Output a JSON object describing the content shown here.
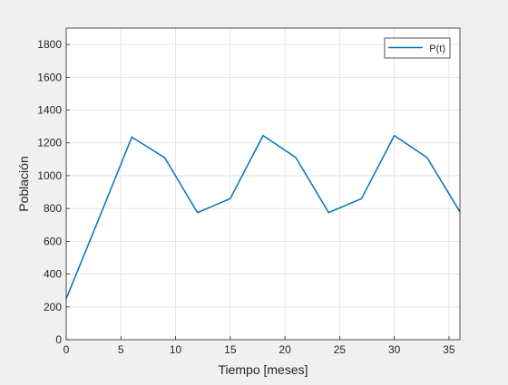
{
  "chart_data": {
    "type": "line",
    "xlabel": "Tiempo [meses]",
    "ylabel": "Población",
    "xlim": [
      0,
      36
    ],
    "ylim": [
      0,
      1900
    ],
    "x_ticks": [
      0,
      5,
      10,
      15,
      20,
      25,
      30,
      35
    ],
    "y_ticks": [
      0,
      200,
      400,
      600,
      800,
      1000,
      1200,
      1400,
      1600,
      1800
    ],
    "grid": true,
    "legend_position": "top-right",
    "series": [
      {
        "name": "P(t)",
        "color": "#0072bd",
        "x": [
          0,
          3,
          6,
          9,
          12,
          15,
          18,
          21,
          24,
          27,
          30,
          33,
          36
        ],
        "y": [
          250,
          740,
          1235,
          1110,
          775,
          860,
          1245,
          1110,
          775,
          860,
          1245,
          1110,
          780
        ]
      }
    ]
  }
}
